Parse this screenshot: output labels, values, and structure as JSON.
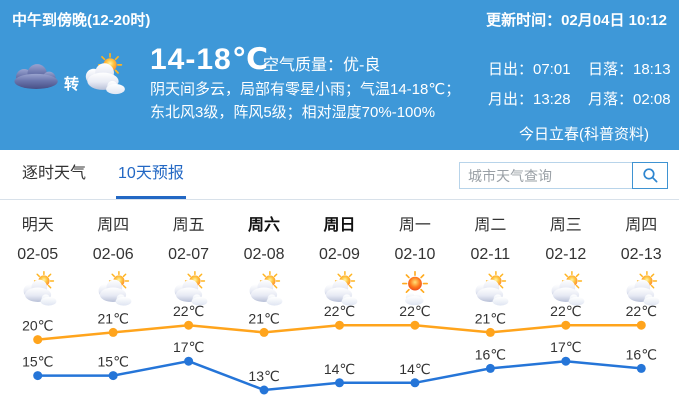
{
  "header": {
    "period_label": "中午到傍晚(12-20时)",
    "update_time": "更新时间：02月04日 10:12",
    "transition_label": "转",
    "current_icon": "overcast",
    "next_icon": "partly-cloudy",
    "temp_range": "14-18℃",
    "air_quality": "空气质量：优-良",
    "description": "阴天间多云，局部有零星小雨；气温14-18℃；东北风3级，阵风5级；相对湿度70%-100%",
    "sunrise": "日出：07:01",
    "sunset": "日落：18:13",
    "moonrise": "月出：13:28",
    "moonset": "月落：02:08",
    "solar_term": "今日立春(科普资料)"
  },
  "tabs": {
    "hourly": "逐时天气",
    "ten_day": "10天预报"
  },
  "search": {
    "placeholder": "城市天气查询",
    "icon": "search-icon"
  },
  "colors": {
    "panel_blue": "#3e98d8",
    "tab_active": "#2368c4",
    "high_line": "#ffa41c",
    "low_line": "#2575d8",
    "label_dark": "#333333"
  },
  "chart_data": {
    "type": "line",
    "title": "10天预报",
    "categories": [
      "明天",
      "周四",
      "周五",
      "周六",
      "周日",
      "周一",
      "周二",
      "周三",
      "周四"
    ],
    "dates": [
      "02-05",
      "02-06",
      "02-07",
      "02-08",
      "02-09",
      "02-10",
      "02-11",
      "02-12",
      "02-13"
    ],
    "weekend_bold": [
      false,
      false,
      false,
      true,
      true,
      false,
      false,
      false,
      false
    ],
    "icons": [
      "partly-cloudy",
      "partly-cloudy",
      "partly-cloudy",
      "partly-cloudy",
      "partly-cloudy",
      "mostly-sunny",
      "partly-cloudy",
      "partly-cloudy",
      "partly-cloudy"
    ],
    "series": [
      {
        "name": "high",
        "color": "#ffa41c",
        "values": [
          20,
          21,
          22,
          21,
          22,
          22,
          21,
          22,
          22
        ]
      },
      {
        "name": "low",
        "color": "#2575d8",
        "values": [
          15,
          15,
          17,
          13,
          14,
          14,
          16,
          17,
          16
        ]
      }
    ],
    "unit": "℃",
    "ylim": [
      13,
      22
    ],
    "grid": false,
    "legend": "none"
  }
}
